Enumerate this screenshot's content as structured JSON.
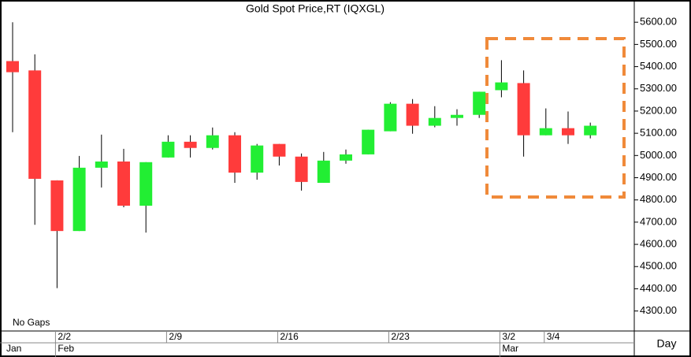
{
  "chart_data": {
    "type": "candlestick",
    "title": "Gold Spot Price,RT (IQXGL)",
    "annotation": "No Gaps",
    "x_label": "Day",
    "categories": [
      null,
      null,
      "2/2",
      null,
      null,
      null,
      null,
      "2/9",
      null,
      null,
      null,
      null,
      "2/16",
      null,
      null,
      null,
      null,
      "2/23",
      null,
      null,
      null,
      null,
      "3/2",
      null,
      "3/4",
      null,
      null
    ],
    "month_categories": [
      "Jan",
      null,
      "Feb",
      null,
      null,
      null,
      null,
      null,
      null,
      null,
      null,
      null,
      null,
      null,
      null,
      null,
      null,
      null,
      null,
      null,
      null,
      null,
      "Mar",
      null,
      null,
      null,
      null
    ],
    "open": [
      5425,
      5383,
      4888,
      4660,
      4945,
      4973,
      4774,
      4991,
      5062,
      5034,
      5091,
      4923,
      5052,
      4995,
      4877,
      4977,
      5005,
      5109,
      5233,
      5134,
      5169,
      5183,
      5294,
      5326,
      5091,
      5123,
      5091
    ],
    "high": [
      5600,
      5455,
      4888,
      4998,
      5094,
      5030,
      4970,
      5091,
      5091,
      5126,
      5105,
      5052,
      5052,
      5009,
      5016,
      5027,
      5116,
      5240,
      5254,
      5222,
      5208,
      5287,
      5429,
      5383,
      5212,
      5198,
      5148
    ],
    "low": [
      5105,
      4688,
      4403,
      4660,
      4856,
      4767,
      4653,
      4991,
      4991,
      5027,
      4877,
      4891,
      4955,
      4842,
      4877,
      4963,
      5005,
      5109,
      5098,
      5127,
      5134,
      5169,
      5262,
      4995,
      5091,
      5052,
      5077
    ],
    "close": [
      5375,
      4895,
      4660,
      4945,
      4973,
      4774,
      4970,
      5062,
      5034,
      5091,
      4923,
      5045,
      4995,
      4881,
      4977,
      5005,
      5116,
      5233,
      5134,
      5169,
      5183,
      5287,
      5329,
      5091,
      5123,
      5091,
      5134
    ],
    "up_color": "#22ee33",
    "down_color": "#ff3b3b",
    "ylim": [
      4210,
      5700
    ],
    "yticks": [
      {
        "value": 4300,
        "label": "4300.00"
      },
      {
        "value": 4400,
        "label": "4400.00"
      },
      {
        "value": 4500,
        "label": "4500.00"
      },
      {
        "value": 4600,
        "label": "4600.00"
      },
      {
        "value": 4700,
        "label": "4700.00"
      },
      {
        "value": 4800,
        "label": "4800.00"
      },
      {
        "value": 4900,
        "label": "4900.00"
      },
      {
        "value": 5000,
        "label": "5000.00"
      },
      {
        "value": 5100,
        "label": "5100.00"
      },
      {
        "value": 5200,
        "label": "5200.00"
      },
      {
        "value": 5300,
        "label": "5300.00"
      },
      {
        "value": 5400,
        "label": "5400.00"
      },
      {
        "value": 5500,
        "label": "5500.00"
      },
      {
        "value": 5600,
        "label": "5600.00"
      }
    ]
  }
}
